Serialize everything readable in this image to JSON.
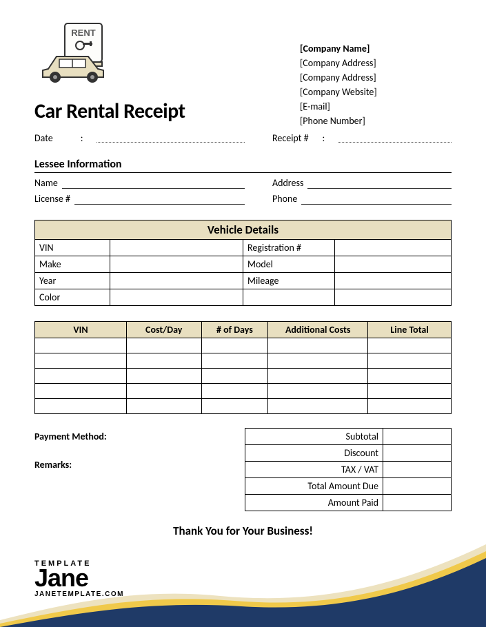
{
  "title": "Car Rental Receipt",
  "company": {
    "name": "[Company Name]",
    "addr1": "[Company Address]",
    "addr2": "[Company Address]",
    "website": "[Company Website]",
    "email": "[E-mail]",
    "phone": "[Phone Number]"
  },
  "fields": {
    "date_label": "Date",
    "receipt_label": "Receipt #"
  },
  "lessee": {
    "heading": "Lessee Information",
    "name_label": "Name",
    "address_label": "Address",
    "license_label": "License #",
    "phone_label": "Phone"
  },
  "vehicle": {
    "heading": "Vehicle Details",
    "vin": "VIN",
    "reg": "Registration #",
    "make": "Make",
    "model": "Model",
    "year": "Year",
    "mileage": "Mileage",
    "color": "Color"
  },
  "cost_table": {
    "col_vin": "VIN",
    "col_cost": "Cost/Day",
    "col_days": "# of Days",
    "col_add": "Additional Costs",
    "col_total": "Line Total",
    "empty_rows": 5
  },
  "payment": {
    "method_label": "Payment Method:",
    "remarks_label": "Remarks:"
  },
  "totals": {
    "subtotal": "Subtotal",
    "discount": "Discount",
    "tax": "TAX / VAT",
    "due": "Total Amount Due",
    "paid": "Amount Paid"
  },
  "thankyou": "Thank You for Your Business!",
  "footer": {
    "small": "TEMPLATE",
    "main": "Jane",
    "url": "JANETEMPLATE.COM"
  },
  "colors": {
    "table_header_bg": "#e8dfc0",
    "wave_navy": "#1f3a67",
    "wave_gold": "#f0c94a",
    "wave_cream": "#ede2bf"
  }
}
